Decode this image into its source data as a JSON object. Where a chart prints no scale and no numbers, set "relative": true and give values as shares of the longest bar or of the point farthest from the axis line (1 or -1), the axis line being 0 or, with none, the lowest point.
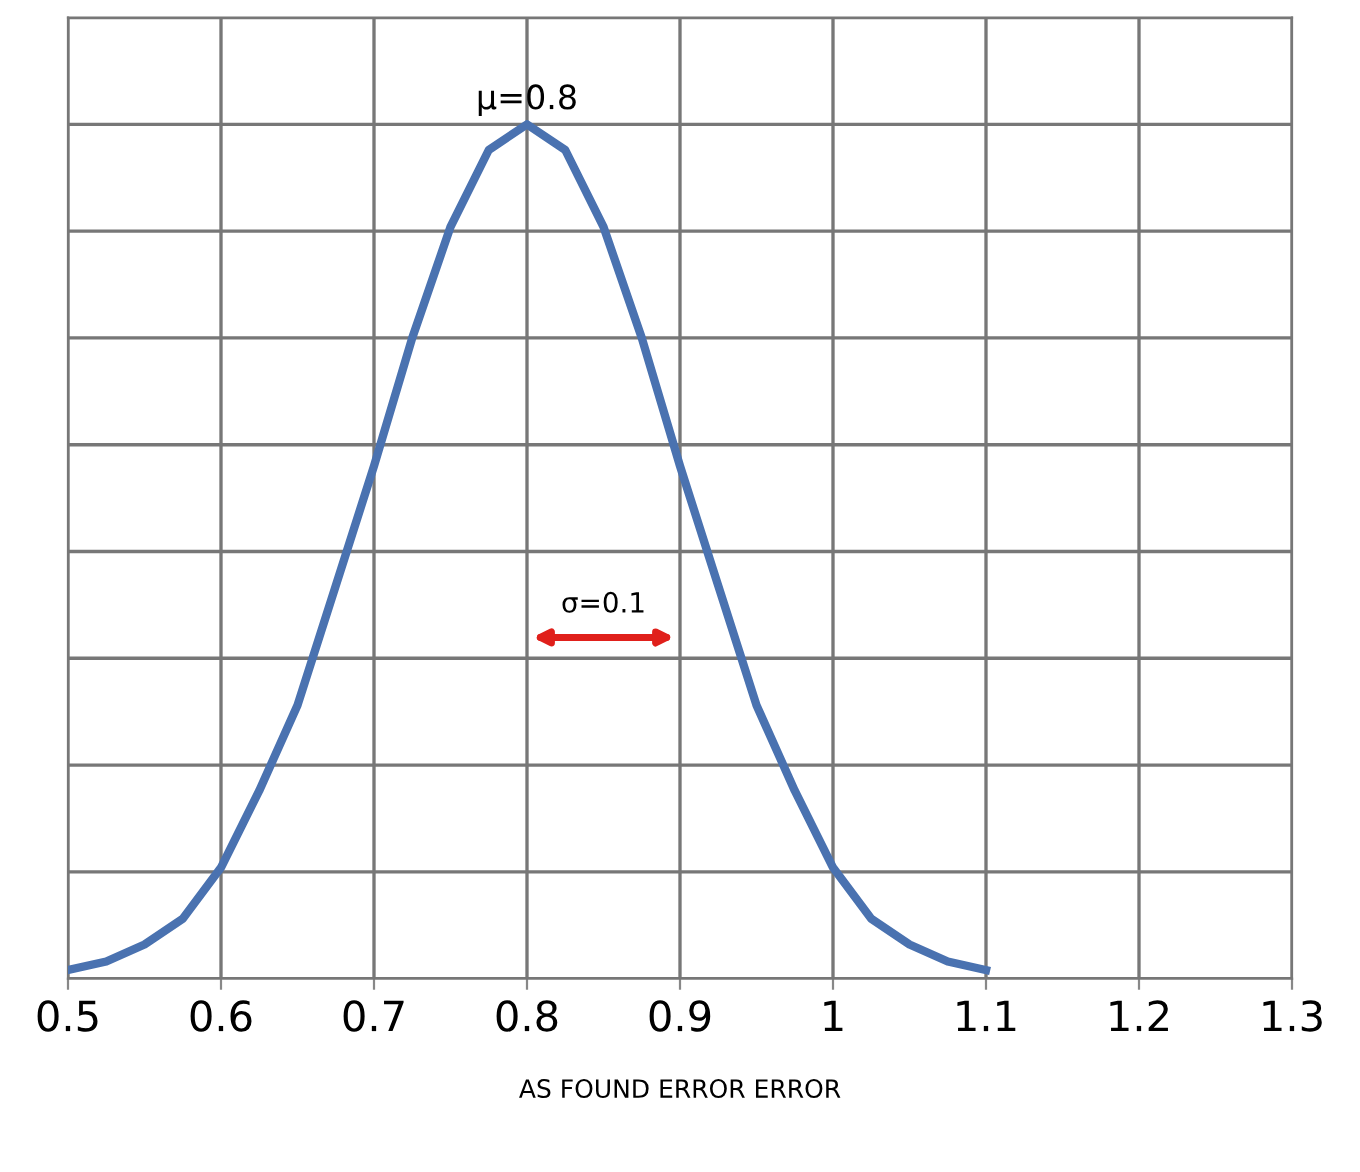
{
  "chart_data": {
    "type": "line",
    "relative": true,
    "x": [
      0.5,
      0.525,
      0.55,
      0.575,
      0.6,
      0.625,
      0.65,
      0.675,
      0.7,
      0.725,
      0.75,
      0.775,
      0.8,
      0.825,
      0.85,
      0.875,
      0.9,
      0.925,
      0.95,
      0.975,
      1.0,
      1.025,
      1.05,
      1.075,
      1.1
    ],
    "series": [
      {
        "color": "#4a72b0",
        "values": [
          0.01,
          0.02,
          0.04,
          0.07,
          0.13,
          0.22,
          0.32,
          0.46,
          0.6,
          0.75,
          0.88,
          0.97,
          1,
          0.97,
          0.88,
          0.75,
          0.6,
          0.46,
          0.32,
          0.22,
          0.13,
          0.07,
          0.04,
          0.02,
          0.01
        ]
      }
    ],
    "xlim": [
      0.5,
      1.3
    ],
    "xticks": [
      0.5,
      0.6,
      0.7,
      0.8,
      0.9,
      1,
      1.1,
      1.2,
      1.3
    ],
    "xlabel": "AS FOUND ERROR ERROR",
    "annotations": [
      {
        "text": "μ=0.8",
        "x": 0.8,
        "y": 1
      },
      "σ=0.1"
    ],
    "grid": true,
    "marker": "none",
    "line_style": "solid"
  }
}
